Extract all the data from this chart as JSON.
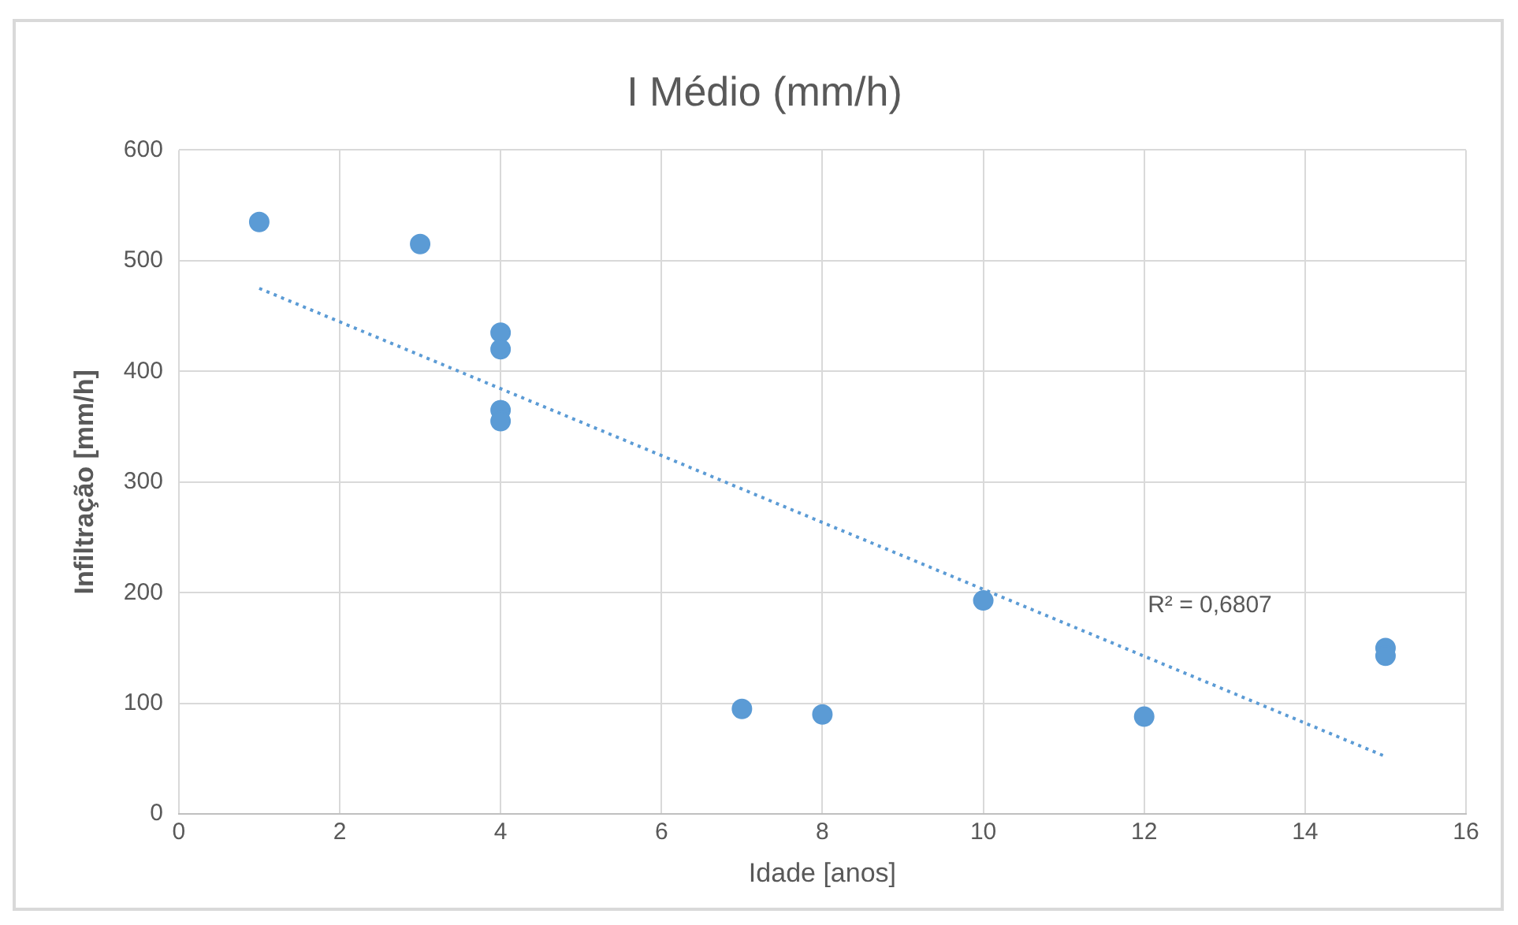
{
  "chart_data": {
    "type": "scatter",
    "title": "I Médio (mm/h)",
    "xlabel": "Idade [anos]",
    "ylabel": "Infiltração [mm/h]",
    "xlim": [
      0,
      16
    ],
    "xticks": [
      0,
      2,
      4,
      6,
      8,
      10,
      12,
      14,
      16
    ],
    "ylim": [
      0,
      600
    ],
    "yticks": [
      0,
      100,
      200,
      300,
      400,
      500,
      600
    ],
    "grid": true,
    "marker": "circle",
    "series": [
      {
        "type": "scatter",
        "color": "#5b9bd5",
        "x": [
          1,
          3,
          4,
          4,
          4,
          4,
          7,
          8,
          10,
          12,
          15,
          15
        ],
        "values": [
          535,
          515,
          435,
          420,
          365,
          355,
          95,
          90,
          193,
          88,
          150,
          143
        ]
      },
      {
        "type": "line",
        "color": "#5b9bd5",
        "line_style": "dotted",
        "marker": "none",
        "x": [
          1,
          15
        ],
        "values": [
          475,
          52
        ]
      }
    ],
    "annotations": [
      "R² = 0,6807"
    ]
  }
}
